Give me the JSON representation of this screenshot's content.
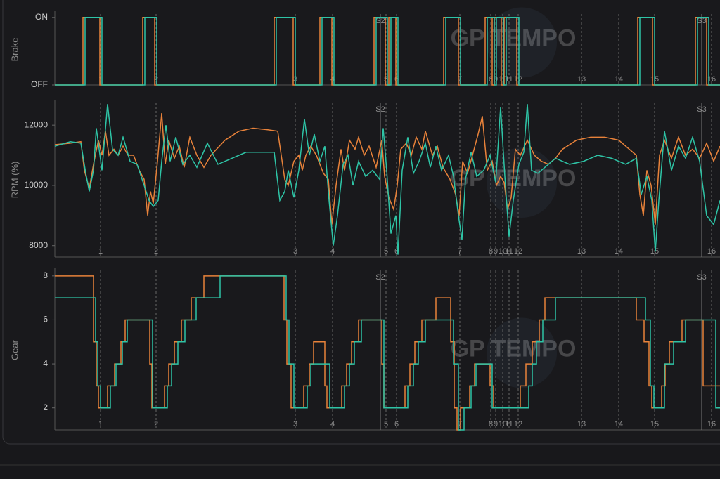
{
  "watermark": "GP TEMPO",
  "track_markers": {
    "corners": [
      {
        "label": "1",
        "x": 143
      },
      {
        "label": "2",
        "x": 222
      },
      {
        "label": "3",
        "x": 420
      },
      {
        "label": "4",
        "x": 473
      },
      {
        "label": "5",
        "x": 549
      },
      {
        "label": "6",
        "x": 564
      },
      {
        "label": "7",
        "x": 654
      },
      {
        "label": "8",
        "x": 698
      },
      {
        "label": "9",
        "x": 705
      },
      {
        "label": "10",
        "x": 715
      },
      {
        "label": "11",
        "x": 724
      },
      {
        "label": "12",
        "x": 737
      },
      {
        "label": "13",
        "x": 827
      },
      {
        "label": "14",
        "x": 880
      },
      {
        "label": "15",
        "x": 931
      },
      {
        "label": "16",
        "x": 1012
      }
    ],
    "sectors": [
      {
        "label": "S2",
        "x": 541
      },
      {
        "label": "S3",
        "x": 998
      }
    ]
  },
  "chart_data": [
    {
      "type": "step",
      "ylabel": "Brake",
      "xlim": [
        78,
        1024
      ],
      "ylim": [
        0,
        1.05
      ],
      "yticks": [
        {
          "value": 0,
          "label": "OFF"
        },
        {
          "value": 1,
          "label": "ON"
        }
      ],
      "series": [
        {
          "color": "#e8823a",
          "x": [
            78,
            118,
            142,
            203,
            220,
            390,
            417,
            455,
            472,
            532,
            548,
            553,
            563,
            631,
            652,
            690,
            700,
            703,
            713,
            717,
            735,
            907,
            928,
            989,
            1005
          ],
          "values": [
            0,
            1,
            0,
            1,
            0,
            1,
            0,
            1,
            0,
            1,
            0,
            1,
            0,
            1,
            0,
            1,
            0,
            1,
            0,
            1,
            0,
            1,
            0,
            1,
            0
          ]
        },
        {
          "color": "#2ec4a6",
          "x": [
            78,
            121,
            145,
            206,
            223,
            393,
            420,
            458,
            475,
            535,
            551,
            556,
            566,
            634,
            655,
            693,
            703,
            706,
            716,
            720,
            738,
            910,
            931,
            992,
            1008
          ],
          "values": [
            0,
            1,
            0,
            1,
            0,
            1,
            0,
            1,
            0,
            1,
            0,
            1,
            0,
            1,
            0,
            1,
            0,
            1,
            0,
            1,
            0,
            1,
            0,
            1,
            0
          ]
        }
      ]
    },
    {
      "type": "line",
      "ylabel": "RPM (%)",
      "xlim": [
        78,
        1024
      ],
      "ylim": [
        7620,
        12750
      ],
      "yticks": [
        8000,
        10000,
        12000
      ],
      "series": [
        {
          "color": "#e8823a",
          "x": [
            78,
            100,
            115,
            120,
            127,
            133,
            140,
            145,
            150,
            155,
            162,
            168,
            175,
            182,
            190,
            198,
            205,
            210,
            214,
            218,
            224,
            230,
            235,
            240,
            248,
            255,
            262,
            270,
            280,
            290,
            300,
            320,
            340,
            360,
            380,
            395,
            400,
            405,
            410,
            418,
            425,
            430,
            435,
            442,
            450,
            460,
            467,
            472,
            478,
            485,
            490,
            497,
            505,
            510,
            518,
            525,
            535,
            543,
            547,
            553,
            560,
            565,
            570,
            578,
            585,
            592,
            600,
            605,
            615,
            622,
            630,
            640,
            648,
            653,
            658,
            665,
            672,
            680,
            686,
            693,
            700,
            706,
            712,
            717,
            722,
            727,
            733,
            740,
            750,
            760,
            770,
            780,
            790,
            800,
            820,
            840,
            860,
            880,
            895,
            905,
            910,
            915,
            920,
            926,
            932,
            938,
            945,
            955,
            965,
            975,
            985,
            995,
            1005,
            1015,
            1024
          ],
          "values": [
            11350,
            11400,
            11450,
            10500,
            9900,
            10700,
            11500,
            11000,
            11800,
            11000,
            11200,
            11000,
            11300,
            11000,
            11000,
            10500,
            10200,
            9000,
            9800,
            9400,
            10800,
            12400,
            10700,
            11500,
            10900,
            11300,
            10600,
            11600,
            11000,
            10600,
            11000,
            11500,
            11800,
            11900,
            11850,
            11800,
            11000,
            10200,
            10000,
            10800,
            11000,
            10500,
            11000,
            11300,
            11000,
            10400,
            10200,
            8700,
            10000,
            11200,
            10500,
            11500,
            11200,
            11600,
            11000,
            11300,
            10600,
            11500,
            10300,
            9600,
            9200,
            10000,
            11200,
            11400,
            11000,
            11600,
            11200,
            11800,
            11000,
            11300,
            10600,
            10200,
            9700,
            9000,
            10800,
            10400,
            11000,
            11700,
            12300,
            10500,
            10800,
            10000,
            10300,
            10100,
            9200,
            9600,
            11200,
            11000,
            11500,
            11000,
            10800,
            10700,
            10900,
            11200,
            11500,
            11600,
            11600,
            11500,
            11200,
            11000,
            9700,
            9000,
            10500,
            10000,
            8700,
            11000,
            11500,
            10900,
            11600,
            11000,
            11200,
            10900,
            11400,
            10800,
            11300
          ]
        },
        {
          "color": "#2ec4a6",
          "x": [
            78,
            100,
            115,
            122,
            127,
            133,
            137,
            145,
            153,
            160,
            168,
            175,
            185,
            195,
            205,
            212,
            218,
            225,
            230,
            236,
            242,
            250,
            260,
            270,
            280,
            295,
            310,
            330,
            350,
            370,
            390,
            398,
            405,
            410,
            418,
            425,
            433,
            440,
            447,
            455,
            462,
            468,
            474,
            480,
            488,
            495,
            502,
            510,
            520,
            530,
            540,
            545,
            550,
            556,
            563,
            566,
            572,
            580,
            588,
            596,
            605,
            612,
            620,
            628,
            638,
            645,
            652,
            657,
            662,
            670,
            678,
            688,
            697,
            705,
            712,
            718,
            724,
            730,
            738,
            745,
            750,
            756,
            765,
            775,
            790,
            810,
            830,
            850,
            870,
            890,
            905,
            912,
            920,
            927,
            932,
            937,
            945,
            955,
            965,
            975,
            985,
            995,
            1005,
            1015,
            1024
          ],
          "values": [
            11300,
            11450,
            11400,
            10400,
            9800,
            10500,
            11900,
            10500,
            12700,
            11200,
            11000,
            11600,
            10800,
            10700,
            10000,
            9500,
            9300,
            9500,
            10800,
            12000,
            10800,
            11600,
            10700,
            11000,
            10600,
            11400,
            10700,
            10900,
            11100,
            11100,
            11100,
            9500,
            9800,
            10500,
            9600,
            10500,
            12200,
            11000,
            11700,
            10800,
            11300,
            9500,
            8000,
            9000,
            10700,
            11000,
            10000,
            10800,
            10300,
            10500,
            10200,
            11900,
            10500,
            8400,
            9000,
            7700,
            10500,
            11600,
            10400,
            10800,
            11400,
            10600,
            11300,
            10500,
            11000,
            10300,
            9000,
            8200,
            10200,
            11100,
            10300,
            10500,
            11000,
            10100,
            12600,
            10300,
            8300,
            9500,
            10700,
            11100,
            12700,
            10500,
            10400,
            10600,
            10900,
            10700,
            10800,
            11000,
            10900,
            10700,
            10900,
            9700,
            10300,
            9500,
            7800,
            9500,
            11800,
            10500,
            11300,
            10900,
            11600,
            10800,
            9000,
            8700,
            9500
          ]
        }
      ]
    },
    {
      "type": "step",
      "ylabel": "Gear",
      "xlim": [
        78,
        1024
      ],
      "ylim": [
        1,
        8.25
      ],
      "yticks": [
        2,
        4,
        6,
        8
      ],
      "series": [
        {
          "color": "#e8823a",
          "x": [
            78,
            133,
            137,
            140,
            153,
            163,
            172,
            178,
            213,
            216,
            234,
            240,
            248,
            258,
            272,
            290,
            404,
            408,
            414,
            432,
            440,
            446,
            462,
            465,
            486,
            493,
            500,
            510,
            543,
            546,
            576,
            583,
            590,
            600,
            620,
            641,
            646,
            650,
            655,
            668,
            675,
            697,
            702,
            740,
            748,
            757,
            767,
            775,
            905,
            916,
            923,
            927,
            941,
            946,
            952,
            970,
            1000
          ],
          "values": [
            8,
            5,
            3,
            2,
            3,
            4,
            5,
            6,
            4,
            2,
            3,
            4,
            5,
            6,
            7,
            8,
            6,
            4,
            2,
            3,
            4,
            5,
            3,
            2,
            3,
            4,
            5,
            6,
            4,
            2,
            3,
            4,
            5,
            6,
            7,
            5,
            2,
            1,
            2,
            3,
            4,
            3,
            2,
            3,
            4,
            5,
            6,
            7,
            6,
            5,
            3,
            2,
            3,
            4,
            5,
            6,
            3
          ]
        },
        {
          "color": "#2ec4a6",
          "x": [
            78,
            136,
            139,
            143,
            157,
            165,
            174,
            181,
            217,
            238,
            244,
            253,
            263,
            279,
            313,
            407,
            411,
            418,
            437,
            442,
            469,
            490,
            497,
            504,
            514,
            546,
            580,
            588,
            595,
            605,
            645,
            652,
            660,
            670,
            677,
            700,
            752,
            757,
            763,
            772,
            790,
            918,
            925,
            930,
            945,
            958,
            975,
            1018
          ],
          "values": [
            7,
            5,
            3,
            2,
            3,
            4,
            5,
            6,
            2,
            3,
            4,
            5,
            6,
            7,
            8,
            6,
            4,
            2,
            3,
            4,
            2,
            3,
            4,
            5,
            6,
            2,
            3,
            4,
            5,
            6,
            4,
            1,
            2,
            3,
            4,
            2,
            3,
            4,
            5,
            6,
            7,
            6,
            3,
            2,
            4,
            5,
            6,
            2
          ]
        }
      ]
    }
  ]
}
